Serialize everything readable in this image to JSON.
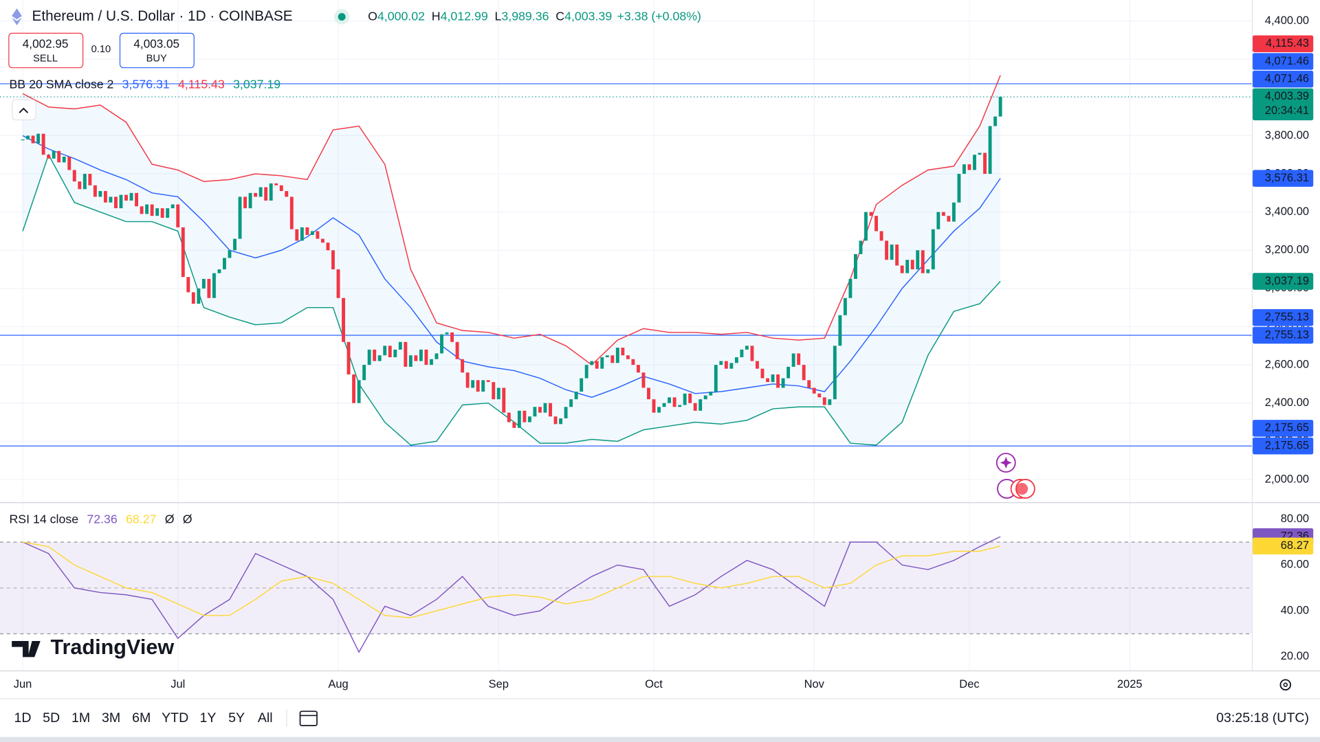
{
  "header": {
    "ohlc": [
      {
        "key": "O",
        "value": "4,000.02"
      },
      {
        "key": "H",
        "value": "4,012.99"
      },
      {
        "key": "L",
        "value": "3,989.36"
      },
      {
        "key": "C",
        "value": "4,003.39"
      }
    ],
    "change": "+3.38 (+0.08%)",
    "sell_price": "4,002.95",
    "sell": "SELL",
    "spread": "0.10",
    "buy_price": "4,003.05",
    "buy": "BUY"
  },
  "toolbar": {
    "timeframes": [
      "1D",
      "5D",
      "1M",
      "3M",
      "6M",
      "YTD",
      "1Y",
      "5Y",
      "All"
    ],
    "clock": "03:25:18 (UTC)",
    "brand": "TradingView"
  },
  "chart_data": {
    "type": "candlestick",
    "title": "Ethereum / U.S. Dollar · 1D · COINBASE",
    "up_color": "#089981",
    "down_color": "#f23645",
    "x": [
      0,
      1,
      2,
      3,
      4,
      5,
      6,
      7,
      8,
      9,
      10,
      11,
      12,
      13,
      14,
      15,
      16,
      17,
      18,
      19,
      20,
      21,
      22,
      23,
      24,
      25,
      26,
      27,
      28,
      29,
      30,
      31,
      32,
      33,
      34,
      35,
      36,
      37,
      38,
      39,
      40,
      41,
      42,
      43,
      44,
      45,
      46,
      47,
      48,
      49,
      50,
      51,
      52,
      53,
      54,
      55,
      56,
      57,
      58,
      59,
      60,
      61,
      62,
      63,
      64,
      65,
      66,
      67,
      68,
      69,
      70,
      71,
      72,
      73,
      74,
      75,
      76,
      77,
      78,
      79,
      80,
      81,
      82,
      83,
      84,
      85,
      86,
      87,
      88,
      89,
      90,
      91,
      92,
      93,
      94,
      95,
      96,
      97,
      98,
      99,
      100,
      101,
      102,
      103,
      104,
      105,
      106,
      107,
      108,
      109,
      110,
      111,
      112,
      113,
      114,
      115,
      116,
      117,
      118,
      119,
      120,
      121,
      122,
      123,
      124,
      125,
      126,
      127,
      128,
      129,
      130,
      131,
      132,
      133,
      134,
      135,
      136,
      137,
      138,
      139,
      140,
      141,
      142,
      143,
      144,
      145,
      146,
      147,
      148,
      149,
      150,
      151,
      152,
      153,
      154,
      155,
      156,
      157,
      158,
      159,
      160,
      161,
      162,
      163,
      164,
      165,
      166,
      167,
      168,
      169,
      170,
      171,
      172,
      173,
      174,
      175,
      176,
      177,
      178,
      179,
      180,
      181,
      182,
      183,
      184,
      185,
      186,
      187,
      188,
      189
    ],
    "close": [
      3780,
      3800,
      3760,
      3810,
      3700,
      3680,
      3720,
      3660,
      3690,
      3620,
      3560,
      3520,
      3600,
      3540,
      3480,
      3510,
      3450,
      3480,
      3420,
      3490,
      3460,
      3500,
      3430,
      3390,
      3440,
      3380,
      3420,
      3370,
      3420,
      3440,
      3320,
      3060,
      2980,
      2920,
      3000,
      3050,
      2950,
      3080,
      3100,
      3160,
      3200,
      3260,
      3480,
      3420,
      3500,
      3480,
      3530,
      3460,
      3550,
      3540,
      3510,
      3480,
      3310,
      3250,
      3320,
      3280,
      3300,
      3260,
      3240,
      3200,
      3100,
      2950,
      2720,
      2550,
      2400,
      2520,
      2600,
      2680,
      2620,
      2650,
      2700,
      2640,
      2680,
      2720,
      2590,
      2650,
      2620,
      2680,
      2600,
      2630,
      2660,
      2760,
      2770,
      2720,
      2630,
      2560,
      2480,
      2520,
      2460,
      2520,
      2510,
      2420,
      2480,
      2350,
      2300,
      2270,
      2360,
      2300,
      2330,
      2380,
      2350,
      2400,
      2330,
      2290,
      2320,
      2380,
      2420,
      2460,
      2530,
      2600,
      2620,
      2580,
      2640,
      2650,
      2610,
      2690,
      2650,
      2630,
      2600,
      2560,
      2480,
      2420,
      2350,
      2380,
      2400,
      2430,
      2380,
      2390,
      2450,
      2400,
      2360,
      2420,
      2440,
      2460,
      2600,
      2620,
      2580,
      2610,
      2640,
      2680,
      2700,
      2620,
      2580,
      2530,
      2510,
      2550,
      2480,
      2530,
      2590,
      2660,
      2600,
      2520,
      2480,
      2450,
      2430,
      2390,
      2420,
      2700,
      2860,
      2950,
      3050,
      3180,
      3250,
      3400,
      3380,
      3300,
      3250,
      3150,
      3230,
      3120,
      3080,
      3150,
      3100,
      3200,
      3080,
      3100,
      3310,
      3400,
      3380,
      3350,
      3450,
      3600,
      3650,
      3620,
      3700,
      3710,
      3600,
      3850,
      3900,
      4003.39
    ],
    "close_label": "4,003.39",
    "countdown": "20:34:41",
    "xlim": [
      -4.39,
      237.6
    ],
    "xticks": [
      {
        "value": 0,
        "label": "Jun"
      },
      {
        "value": 30,
        "label": "Jul"
      },
      {
        "value": 61,
        "label": "Aug"
      },
      {
        "value": 92,
        "label": "Sep"
      },
      {
        "value": 122,
        "label": "Oct"
      },
      {
        "value": 153,
        "label": "Nov"
      },
      {
        "value": 183,
        "label": "Dec"
      },
      {
        "value": 214,
        "label": "2025"
      }
    ],
    "ylim": [
      1881,
      4510
    ],
    "yticks": [
      {
        "value": 2000,
        "label": "2,000.00"
      },
      {
        "value": 2200,
        "label": "2,200.00"
      },
      {
        "value": 2400,
        "label": "2,400.00"
      },
      {
        "value": 2600,
        "label": "2,600.00"
      },
      {
        "value": 2800,
        "label": "2,800.00"
      },
      {
        "value": 3000,
        "label": "3,000.00"
      },
      {
        "value": 3200,
        "label": "3,200.00"
      },
      {
        "value": 3400,
        "label": "3,400.00"
      },
      {
        "value": 3600,
        "label": "3,600.00"
      },
      {
        "value": 3800,
        "label": "3,800.00"
      },
      {
        "value": 4000,
        "label": "4,000.00"
      },
      {
        "value": 4200,
        "label": "4,200.00"
      },
      {
        "value": 4400,
        "label": "4,400.00"
      }
    ],
    "grid": true,
    "hlines": [
      {
        "value": 4071.46,
        "label": "4,071.46",
        "color": "#2962ff"
      },
      {
        "value": 2755.13,
        "label": "2,755.13",
        "color": "#2962ff"
      },
      {
        "value": 2175.65,
        "label": "2,175.65",
        "color": "#2962ff"
      }
    ],
    "bands": {
      "label": "BB 20 SMA close 2",
      "fill": "rgba(33,150,243,0.06)",
      "x": [
        0,
        5,
        10,
        15,
        20,
        25,
        30,
        35,
        40,
        45,
        50,
        55,
        60,
        65,
        70,
        75,
        80,
        85,
        90,
        95,
        100,
        105,
        110,
        115,
        120,
        125,
        130,
        135,
        140,
        145,
        150,
        155,
        160,
        165,
        170,
        175,
        180,
        185,
        189
      ],
      "series": [
        {
          "color": "#2962ff",
          "last_label": "3,576.31",
          "values": [
            3800,
            3730,
            3680,
            3620,
            3570,
            3500,
            3480,
            3350,
            3200,
            3160,
            3200,
            3270,
            3370,
            3280,
            3050,
            2900,
            2720,
            2620,
            2590,
            2570,
            2530,
            2470,
            2430,
            2480,
            2540,
            2500,
            2450,
            2460,
            2480,
            2500,
            2490,
            2460,
            2620,
            2800,
            3000,
            3150,
            3300,
            3420,
            3576.31
          ]
        },
        {
          "color": "#f23645",
          "last_label": "4,115.43",
          "values": [
            4020,
            3950,
            3940,
            3960,
            3870,
            3650,
            3620,
            3560,
            3570,
            3600,
            3590,
            3570,
            3830,
            3850,
            3650,
            3100,
            2820,
            2780,
            2770,
            2740,
            2760,
            2700,
            2600,
            2730,
            2790,
            2770,
            2770,
            2760,
            2770,
            2740,
            2730,
            2740,
            3050,
            3440,
            3540,
            3620,
            3640,
            3850,
            4115.43
          ]
        },
        {
          "color": "#089981",
          "last_label": "3,037.19",
          "values": [
            3300,
            3700,
            3450,
            3400,
            3350,
            3350,
            3300,
            2900,
            2850,
            2810,
            2820,
            2900,
            2900,
            2500,
            2300,
            2180,
            2200,
            2390,
            2400,
            2300,
            2190,
            2190,
            2210,
            2200,
            2260,
            2280,
            2300,
            2290,
            2310,
            2370,
            2380,
            2380,
            2190,
            2180,
            2300,
            2650,
            2880,
            2920,
            3037.19
          ]
        }
      ]
    },
    "rsi": {
      "label": "RSI 14 close",
      "extra": [
        "Ø",
        "Ø"
      ],
      "x": [
        0,
        5,
        10,
        15,
        20,
        25,
        30,
        35,
        40,
        45,
        50,
        55,
        60,
        65,
        70,
        75,
        80,
        85,
        90,
        95,
        100,
        105,
        110,
        115,
        120,
        125,
        130,
        135,
        140,
        145,
        150,
        155,
        160,
        165,
        170,
        175,
        180,
        185,
        189
      ],
      "series": [
        {
          "color": "#7e57c2",
          "last_label": "72.36",
          "values": [
            70,
            65,
            50,
            48,
            47,
            45,
            28,
            38,
            45,
            65,
            60,
            55,
            45,
            22,
            42,
            38,
            45,
            55,
            42,
            38,
            40,
            48,
            55,
            60,
            58,
            42,
            47,
            55,
            62,
            58,
            50,
            42,
            70,
            70,
            60,
            58,
            62,
            68,
            72.36
          ]
        },
        {
          "color": "#fdd835",
          "last_label": "68.27",
          "values": [
            70,
            68,
            60,
            55,
            50,
            48,
            43,
            38,
            38,
            45,
            53,
            55,
            52,
            45,
            38,
            37,
            40,
            43,
            46,
            47,
            46,
            43,
            45,
            50,
            55,
            55,
            52,
            50,
            52,
            55,
            55,
            50,
            52,
            60,
            64,
            64,
            66,
            66,
            68.27
          ]
        }
      ],
      "ylim": [
        14,
        87
      ],
      "yticks": [
        {
          "value": 20,
          "label": "20.00"
        },
        {
          "value": 40,
          "label": "40.00"
        },
        {
          "value": 60,
          "label": "60.00"
        },
        {
          "value": 80,
          "label": "80.00"
        }
      ],
      "levels": [
        70,
        50,
        30
      ]
    }
  }
}
